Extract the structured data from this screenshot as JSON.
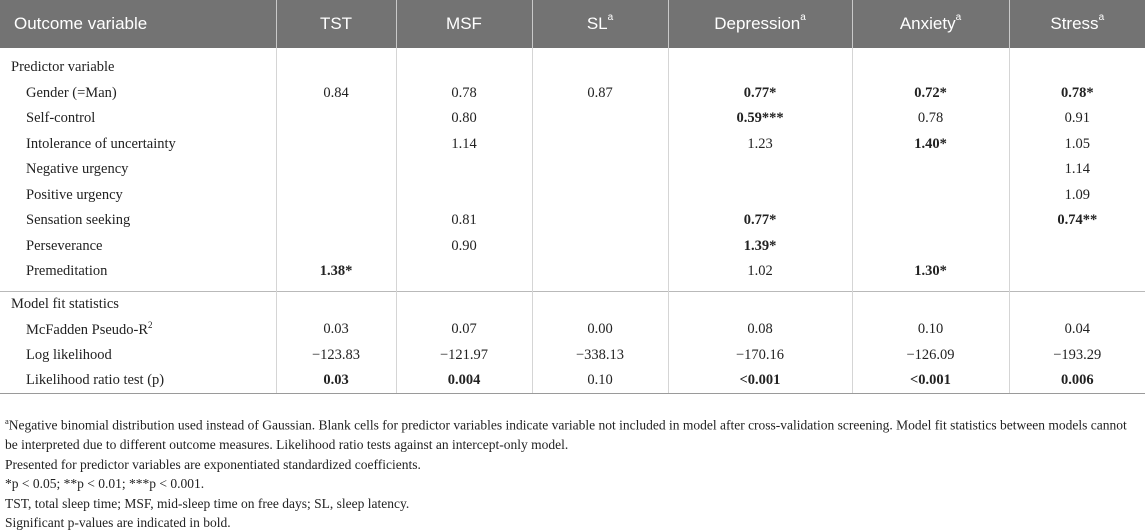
{
  "header": {
    "outcome": "Outcome variable",
    "tst": "TST",
    "msf": "MSF",
    "sl": "SL",
    "depression": "Depression",
    "anxiety": "Anxiety",
    "stress": "Stress",
    "sup_a": "a"
  },
  "sections": {
    "predictor": "Predictor variable",
    "fit": "Model fit statistics"
  },
  "rows": [
    {
      "label": "Gender (=Man)",
      "cells": [
        "0.84",
        "0.78",
        "0.87",
        "0.77*",
        "0.72*",
        "0.78*"
      ],
      "bold": [
        false,
        false,
        false,
        true,
        true,
        true
      ]
    },
    {
      "label": "Self-control",
      "cells": [
        "",
        "0.80",
        "",
        "0.59***",
        "0.78",
        "0.91"
      ],
      "bold": [
        false,
        false,
        false,
        true,
        false,
        false
      ]
    },
    {
      "label": "Intolerance of uncertainty",
      "cells": [
        "",
        "1.14",
        "",
        "1.23",
        "1.40*",
        "1.05"
      ],
      "bold": [
        false,
        false,
        false,
        false,
        true,
        false
      ]
    },
    {
      "label": "Negative urgency",
      "cells": [
        "",
        "",
        "",
        "",
        "",
        "1.14"
      ],
      "bold": [
        false,
        false,
        false,
        false,
        false,
        false
      ]
    },
    {
      "label": "Positive urgency",
      "cells": [
        "",
        "",
        "",
        "",
        "",
        "1.09"
      ],
      "bold": [
        false,
        false,
        false,
        false,
        false,
        false
      ]
    },
    {
      "label": "Sensation seeking",
      "cells": [
        "",
        "0.81",
        "",
        "0.77*",
        "",
        "0.74**"
      ],
      "bold": [
        false,
        false,
        false,
        true,
        false,
        true
      ]
    },
    {
      "label": "Perseverance",
      "cells": [
        "",
        "0.90",
        "",
        "1.39*",
        "",
        ""
      ],
      "bold": [
        false,
        false,
        false,
        true,
        false,
        false
      ]
    },
    {
      "label": "Premeditation",
      "cells": [
        "1.38*",
        "",
        "",
        "1.02",
        "1.30*",
        ""
      ],
      "bold": [
        true,
        false,
        false,
        false,
        true,
        false
      ]
    }
  ],
  "fit_rows": [
    {
      "label": "McFadden Pseudo-R",
      "label_sup": "2",
      "cells": [
        "0.03",
        "0.07",
        "0.00",
        "0.08",
        "0.10",
        "0.04"
      ],
      "bold": [
        false,
        false,
        false,
        false,
        false,
        false
      ]
    },
    {
      "label": "Log likelihood",
      "label_sup": "",
      "cells": [
        "−123.83",
        "−121.97",
        "−338.13",
        "−170.16",
        "−126.09",
        "−193.29"
      ],
      "bold": [
        false,
        false,
        false,
        false,
        false,
        false
      ]
    },
    {
      "label": "Likelihood ratio test (p)",
      "label_sup": "",
      "cells": [
        "0.03",
        "0.004",
        "0.10",
        "<0.001",
        "<0.001",
        "0.006"
      ],
      "bold": [
        true,
        true,
        false,
        true,
        true,
        true
      ]
    }
  ],
  "notes": {
    "n1_sup": "a",
    "n1": "Negative binomial distribution used instead of Gaussian. Blank cells for predictor variables indicate variable not included in model after cross-validation screening. Model fit statistics between models cannot be interpreted due to different outcome measures. Likelihood ratio tests against an intercept-only model.",
    "n2": "Presented for predictor variables are exponentiated standardized coefficients.",
    "n3": "*p < 0.05; **p < 0.01; ***p < 0.001.",
    "n4": "TST, total sleep time; MSF, mid-sleep time on free days; SL, sleep latency.",
    "n5": "Significant p-values are indicated in bold."
  }
}
